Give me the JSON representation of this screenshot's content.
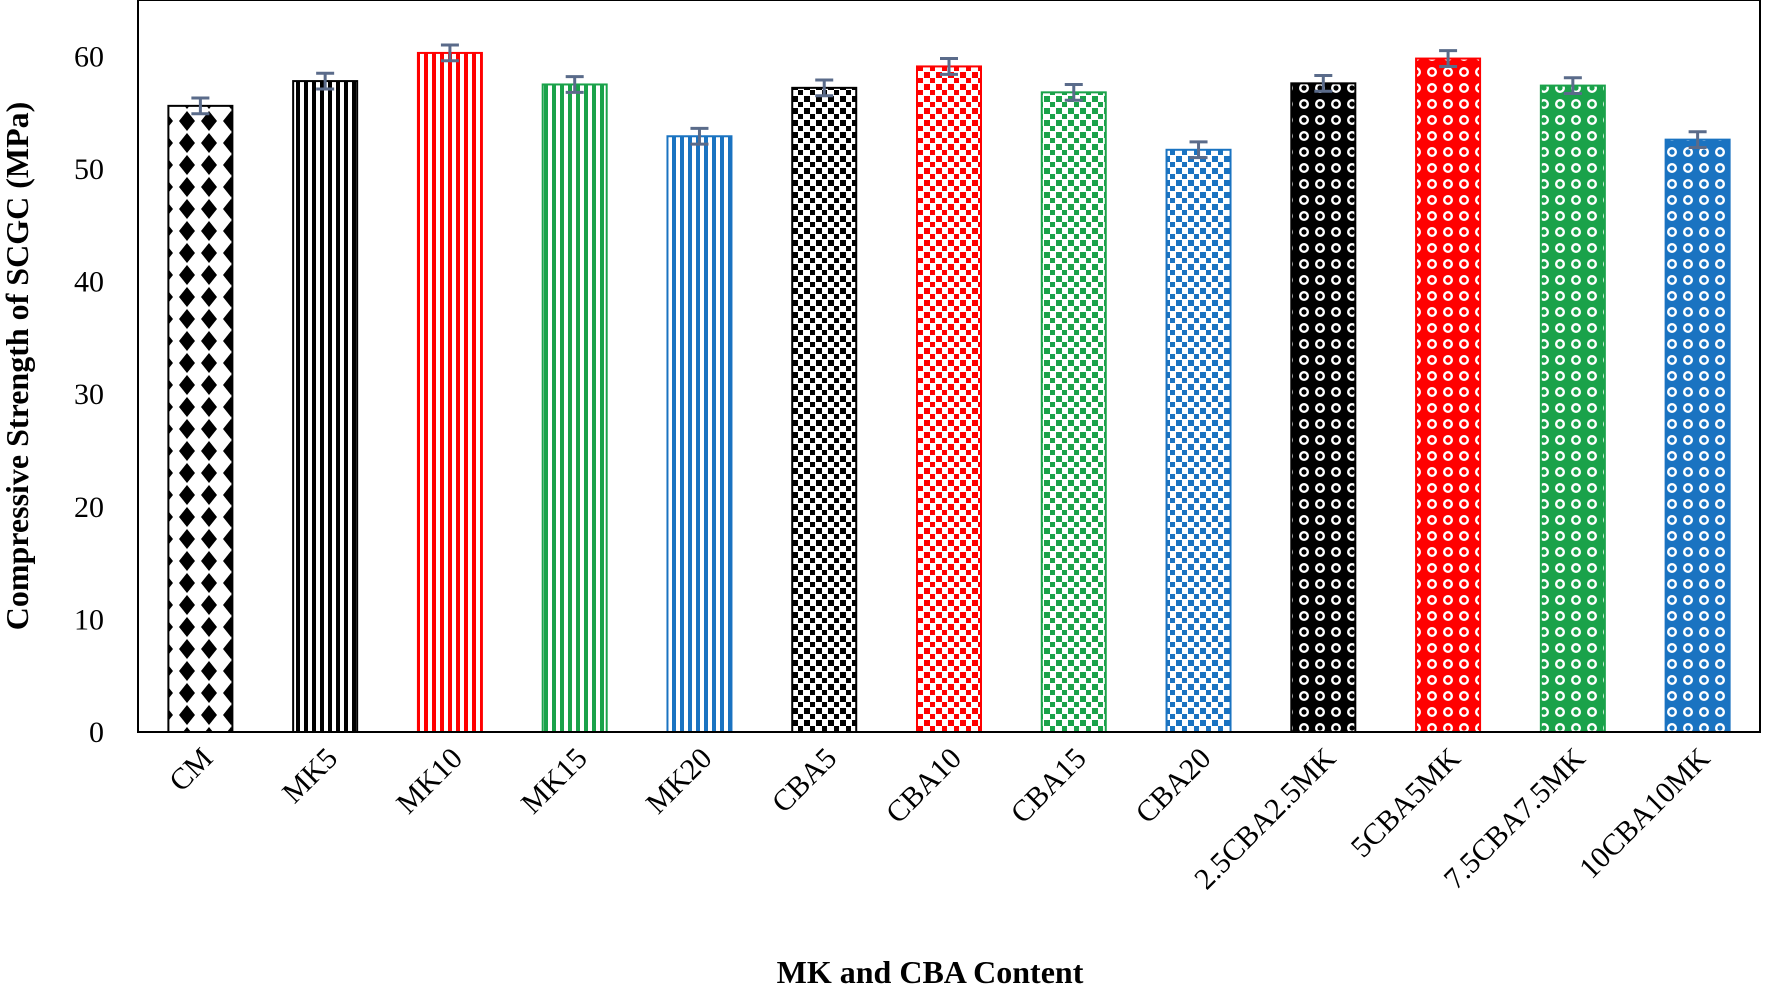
{
  "chart_data": {
    "type": "bar",
    "title": "",
    "xlabel": "MK and CBA Content",
    "ylabel": "Compressive Strength of SCGC (MPa)",
    "ylim": [
      0,
      65
    ],
    "yticks": [
      0,
      10,
      20,
      30,
      40,
      50,
      60
    ],
    "grid": false,
    "legend": "none",
    "categories": [
      "CM",
      "MK5",
      "MK10",
      "MK15",
      "MK20",
      "CBA5",
      "CBA10",
      "CBA15",
      "CBA20",
      "2.5CBA2.5MK",
      "5CBA5MK",
      "7.5CBA7.5MK",
      "10CBA10MK"
    ],
    "values": [
      55.6,
      57.8,
      60.3,
      57.5,
      52.9,
      57.2,
      59.1,
      56.8,
      51.7,
      57.6,
      59.8,
      57.4,
      52.6
    ],
    "error": [
      0.7,
      0.7,
      0.7,
      0.7,
      0.7,
      0.7,
      0.7,
      0.7,
      0.7,
      0.7,
      0.7,
      0.7,
      0.7
    ],
    "bar_colors": [
      "#000000",
      "#000000",
      "#ff0000",
      "#1aa24a",
      "#1a73c1",
      "#000000",
      "#ff0000",
      "#1aa24a",
      "#1a73c1",
      "#000000",
      "#ff0000",
      "#1aa24a",
      "#1a73c1"
    ],
    "bar_patterns": [
      "diamond",
      "vstripe",
      "vstripe",
      "vstripe",
      "vstripe",
      "squares",
      "squares",
      "squares",
      "squares",
      "circles",
      "circles",
      "circles",
      "circles"
    ],
    "error_bar_color": "#5a6b8a"
  }
}
